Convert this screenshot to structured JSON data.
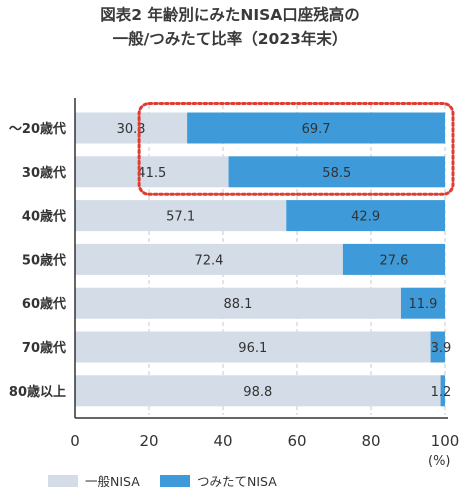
{
  "title_line1": "図表2 年齢別にみたNISA口座残高の",
  "title_line2": "一般/つみたて比率（2023年末）",
  "chart_data": {
    "type": "bar",
    "orientation": "horizontal",
    "stacked": true,
    "categories": [
      "～20歳代",
      "30歳代",
      "40歳代",
      "50歳代",
      "60歳代",
      "70歳代",
      "80歳以上"
    ],
    "series": [
      {
        "name": "一般NISA",
        "color": "#d3dce7",
        "values": [
          30.3,
          41.5,
          57.1,
          72.4,
          88.1,
          96.1,
          98.8
        ]
      },
      {
        "name": "つみたてNISA",
        "color": "#3e9ad8",
        "values": [
          69.7,
          58.5,
          42.9,
          27.6,
          11.9,
          3.9,
          1.2
        ]
      }
    ],
    "xlim": [
      0,
      100
    ],
    "xticks": [
      "0",
      "20",
      "40",
      "60",
      "80",
      "100"
    ],
    "xunit": "(%)",
    "grid": "vertical dashed",
    "legend": "bottom",
    "highlight": {
      "categories": [
        "～20歳代",
        "30歳代"
      ],
      "series": "つみたてNISA",
      "color": "#e03c31",
      "style": "dotted box"
    }
  }
}
